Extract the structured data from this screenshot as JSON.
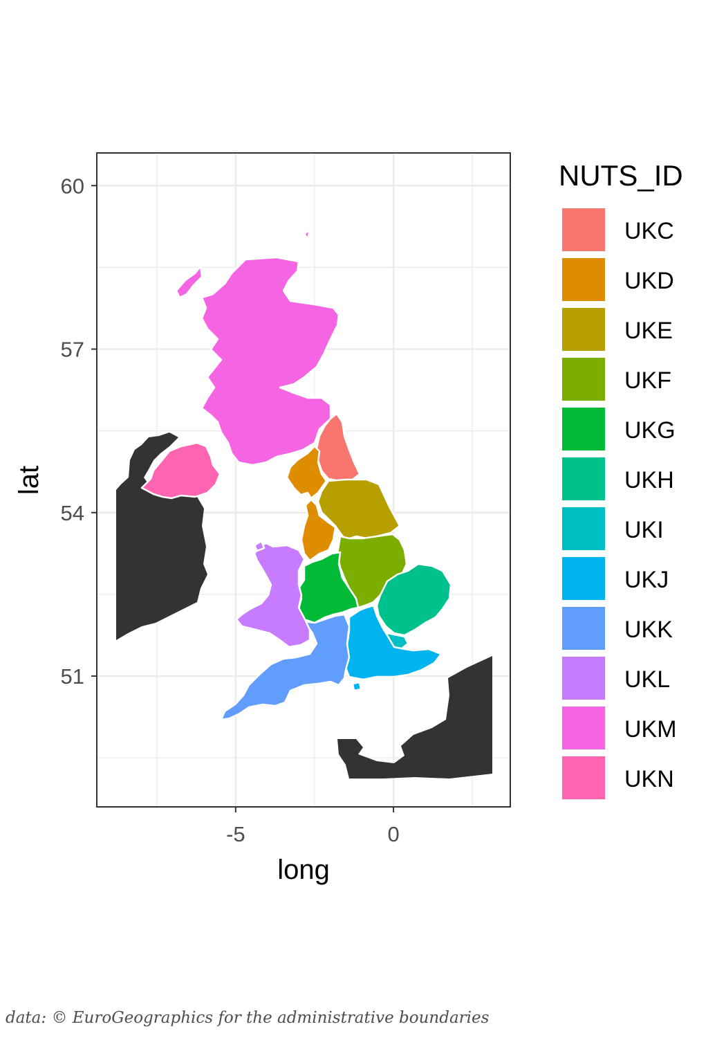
{
  "map": {
    "type": "choropleth",
    "xlabel": "long",
    "ylabel": "lat",
    "xlim": [
      -9.4,
      3.7
    ],
    "ylim": [
      48.6,
      60.6
    ],
    "x_ticks": [
      -5,
      0
    ],
    "y_ticks": [
      51,
      54,
      57,
      60
    ],
    "grid": true,
    "background_region_color": "#333333",
    "border_color": "#ffffff",
    "legend": {
      "title": "NUTS_ID",
      "placement": "right",
      "entries": [
        {
          "id": "UKC",
          "color": "#F8766D"
        },
        {
          "id": "UKD",
          "color": "#DE8C00"
        },
        {
          "id": "UKE",
          "color": "#B79F00"
        },
        {
          "id": "UKF",
          "color": "#7CAE00"
        },
        {
          "id": "UKG",
          "color": "#00BA38"
        },
        {
          "id": "UKH",
          "color": "#00C08B"
        },
        {
          "id": "UKI",
          "color": "#00BFC4"
        },
        {
          "id": "UKJ",
          "color": "#00B4F0"
        },
        {
          "id": "UKK",
          "color": "#619CFF"
        },
        {
          "id": "UKL",
          "color": "#C77CFF"
        },
        {
          "id": "UKM",
          "color": "#F564E3"
        },
        {
          "id": "UKN",
          "color": "#FF64B0"
        }
      ]
    }
  },
  "caption": "data: © EuroGeographics for the administrative boundaries"
}
